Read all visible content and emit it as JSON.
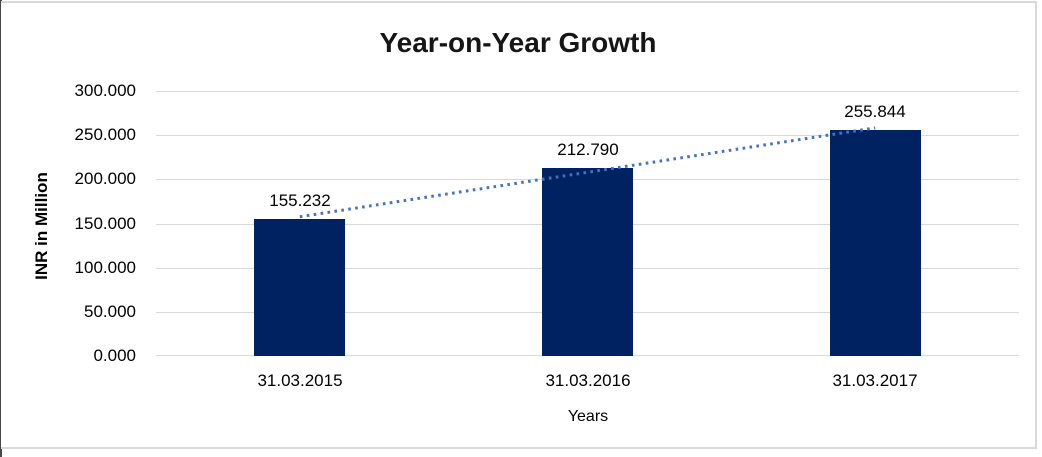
{
  "chart_data": {
    "type": "bar",
    "title": "Year-on-Year Growth",
    "xlabel": "Years",
    "ylabel": "INR in Million",
    "categories": [
      "31.03.2015",
      "31.03.2016",
      "31.03.2017"
    ],
    "values": [
      155.232,
      212.79,
      255.844
    ],
    "value_labels": [
      "155.232",
      "212.790",
      "255.844"
    ],
    "yticks": [
      0,
      50,
      100,
      150,
      200,
      250,
      300
    ],
    "ytick_labels": [
      "0.000",
      "50.000",
      "100.000",
      "150.000",
      "200.000",
      "250.000",
      "300.000"
    ],
    "ylim": [
      0,
      300
    ],
    "grid": "horizontal",
    "legend": "none",
    "bar_color": "#002261",
    "gridline_color": "#d9d9d9",
    "trendline": {
      "type": "linear",
      "style": "dotted",
      "color": "#4472C4",
      "start_value": 157.65,
      "end_value": 258.26
    }
  }
}
